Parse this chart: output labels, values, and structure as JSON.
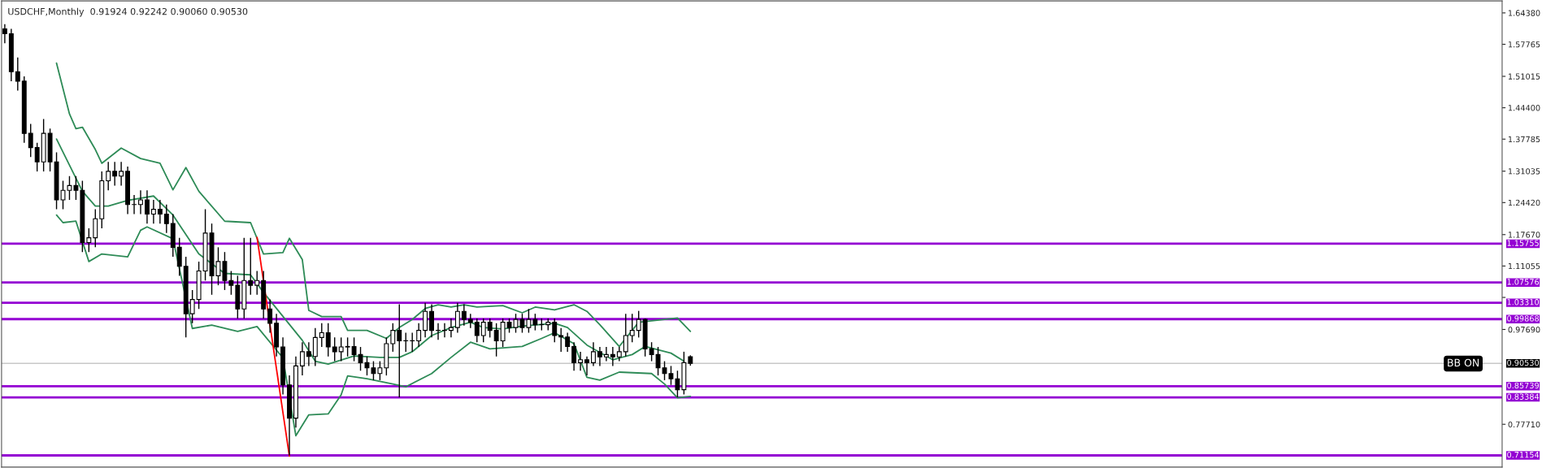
{
  "chart_data": {
    "type": "candlestick",
    "title": "USDCHF,Monthly  0.91924 0.92242 0.90060 0.90530",
    "categories": [
      null,
      null,
      null,
      null,
      null,
      null,
      null,
      null,
      null,
      null,
      null,
      null,
      null,
      null,
      null,
      null,
      null,
      null,
      null,
      null,
      null,
      null,
      null,
      null,
      null,
      null,
      null,
      null,
      null,
      null,
      null,
      null,
      null,
      null,
      null,
      null,
      null,
      null,
      null,
      null,
      null,
      null,
      null,
      null,
      null,
      null,
      null,
      null,
      null,
      null,
      null,
      null,
      null,
      null,
      null,
      null,
      null,
      null,
      null,
      null,
      null,
      null,
      null,
      null,
      null,
      null,
      null,
      null,
      null,
      null,
      null,
      null,
      null,
      null,
      null,
      null,
      null,
      null,
      null,
      null,
      null,
      null,
      null,
      null,
      null,
      null,
      null,
      null,
      null,
      null,
      null,
      null,
      null,
      null,
      null,
      null,
      null,
      null,
      null,
      null,
      null,
      null,
      null,
      null,
      null,
      null,
      null,
      null,
      null,
      null,
      null,
      null,
      null,
      null,
      null,
      null,
      null,
      null,
      null,
      null,
      null,
      null,
      null,
      null,
      null,
      null,
      null,
      null,
      null,
      null,
      null,
      null,
      null,
      null,
      null,
      null,
      null,
      null,
      null,
      null,
      null,
      null,
      null,
      null,
      null,
      null,
      null,
      null,
      null,
      null,
      null,
      null,
      null,
      null,
      null,
      null,
      null,
      null,
      null,
      null,
      null,
      null,
      null,
      null,
      null,
      null,
      null,
      null,
      null,
      null,
      null,
      null,
      null,
      null,
      null,
      null,
      null,
      null,
      null,
      null,
      null,
      null,
      null,
      null,
      null,
      null,
      null,
      null,
      null,
      null,
      null,
      null,
      null,
      null,
      null,
      null,
      null,
      null,
      null,
      null,
      null,
      null,
      null,
      null,
      null,
      null,
      null,
      null,
      null,
      null,
      null,
      null,
      null,
      null,
      null,
      null,
      null,
      null,
      null,
      null,
      null,
      null,
      null,
      null,
      null,
      null,
      null,
      null,
      null,
      null,
      null,
      null
    ],
    "ohlc": [
      [
        1.61,
        1.62,
        1.58,
        1.6
      ],
      [
        1.6,
        1.61,
        1.5,
        1.52
      ],
      [
        1.52,
        1.55,
        1.48,
        1.5
      ],
      [
        1.5,
        1.51,
        1.37,
        1.39
      ],
      [
        1.39,
        1.41,
        1.34,
        1.36
      ],
      [
        1.36,
        1.37,
        1.31,
        1.33
      ],
      [
        1.33,
        1.42,
        1.31,
        1.39
      ],
      [
        1.39,
        1.4,
        1.31,
        1.33
      ],
      [
        1.33,
        1.35,
        1.23,
        1.25
      ],
      [
        1.25,
        1.29,
        1.23,
        1.27
      ],
      [
        1.27,
        1.3,
        1.25,
        1.28
      ],
      [
        1.28,
        1.3,
        1.25,
        1.27
      ],
      [
        1.27,
        1.29,
        1.14,
        1.16
      ],
      [
        1.16,
        1.19,
        1.14,
        1.17
      ],
      [
        1.17,
        1.23,
        1.15,
        1.21
      ],
      [
        1.21,
        1.31,
        1.19,
        1.29
      ],
      [
        1.29,
        1.33,
        1.27,
        1.31
      ],
      [
        1.31,
        1.33,
        1.28,
        1.3
      ],
      [
        1.3,
        1.33,
        1.28,
        1.31
      ],
      [
        1.31,
        1.32,
        1.22,
        1.24
      ],
      [
        1.24,
        1.26,
        1.22,
        1.24
      ],
      [
        1.24,
        1.27,
        1.22,
        1.25
      ],
      [
        1.25,
        1.27,
        1.2,
        1.22
      ],
      [
        1.22,
        1.25,
        1.2,
        1.23
      ],
      [
        1.23,
        1.25,
        1.2,
        1.22
      ],
      [
        1.22,
        1.24,
        1.18,
        1.2
      ],
      [
        1.2,
        1.22,
        1.13,
        1.15
      ],
      [
        1.15,
        1.17,
        1.09,
        1.11
      ],
      [
        1.11,
        1.13,
        0.96,
        1.01
      ],
      [
        1.01,
        1.06,
        0.99,
        1.04
      ],
      [
        1.04,
        1.12,
        1.02,
        1.1
      ],
      [
        1.1,
        1.23,
        1.08,
        1.18
      ],
      [
        1.18,
        1.2,
        1.05,
        1.09
      ],
      [
        1.09,
        1.15,
        1.07,
        1.12
      ],
      [
        1.12,
        1.14,
        1.06,
        1.08
      ],
      [
        1.08,
        1.1,
        1.05,
        1.07
      ],
      [
        1.07,
        1.09,
        1.0,
        1.02
      ],
      [
        1.02,
        1.17,
        1.0,
        1.08
      ],
      [
        1.08,
        1.17,
        1.05,
        1.07
      ],
      [
        1.07,
        1.1,
        1.05,
        1.08
      ],
      [
        1.08,
        1.1,
        1.0,
        1.02
      ],
      [
        1.02,
        1.04,
        0.97,
        0.99
      ],
      [
        0.99,
        1.01,
        0.92,
        0.94
      ],
      [
        0.94,
        0.96,
        0.84,
        0.86
      ],
      [
        0.86,
        0.88,
        0.7115,
        0.79
      ],
      [
        0.79,
        0.92,
        0.77,
        0.9
      ],
      [
        0.9,
        0.95,
        0.88,
        0.93
      ],
      [
        0.93,
        0.95,
        0.9,
        0.92
      ],
      [
        0.92,
        0.98,
        0.9,
        0.96
      ],
      [
        0.96,
        0.99,
        0.94,
        0.97
      ],
      [
        0.97,
        0.99,
        0.92,
        0.94
      ],
      [
        0.94,
        0.96,
        0.91,
        0.93
      ],
      [
        0.93,
        0.96,
        0.91,
        0.94
      ],
      [
        0.94,
        0.96,
        0.92,
        0.941
      ],
      [
        0.941,
        0.96,
        0.91,
        0.924
      ],
      [
        0.924,
        0.94,
        0.89,
        0.907
      ],
      [
        0.907,
        0.92,
        0.88,
        0.896
      ],
      [
        0.896,
        0.91,
        0.87,
        0.884
      ],
      [
        0.884,
        0.91,
        0.87,
        0.896
      ],
      [
        0.896,
        0.96,
        0.88,
        0.947
      ],
      [
        0.947,
        0.99,
        0.93,
        0.975
      ],
      [
        0.975,
        1.03,
        0.834,
        0.953
      ],
      [
        0.953,
        0.97,
        0.93,
        0.953
      ],
      [
        0.953,
        0.97,
        0.93,
        0.953
      ],
      [
        0.953,
        0.99,
        0.94,
        0.975
      ],
      [
        0.975,
        1.033,
        0.96,
        1.015
      ],
      [
        1.015,
        1.03,
        0.96,
        0.975
      ],
      [
        0.975,
        0.99,
        0.955,
        0.975
      ],
      [
        0.975,
        0.99,
        0.96,
        0.975
      ],
      [
        0.975,
        1.0,
        0.96,
        0.981
      ],
      [
        0.981,
        1.033,
        0.97,
        1.015
      ],
      [
        1.015,
        1.03,
        0.985,
        0.998
      ],
      [
        0.998,
        1.01,
        0.98,
        0.992
      ],
      [
        0.992,
        1.0,
        0.95,
        0.964
      ],
      [
        0.964,
        1.0,
        0.95,
        0.992
      ],
      [
        0.992,
        1.0,
        0.96,
        0.975
      ],
      [
        0.975,
        0.99,
        0.92,
        0.953
      ],
      [
        0.953,
        1.0,
        0.94,
        0.992
      ],
      [
        0.992,
        1.0,
        0.97,
        0.981
      ],
      [
        0.981,
        1.01,
        0.97,
        0.998
      ],
      [
        0.998,
        1.01,
        0.97,
        0.981
      ],
      [
        0.981,
        1.02,
        0.97,
        0.998
      ],
      [
        0.998,
        1.01,
        0.975,
        0.987
      ],
      [
        0.987,
        1.0,
        0.975,
        0.987
      ],
      [
        0.987,
        1.0,
        0.975,
        0.992
      ],
      [
        0.992,
        1.0,
        0.95,
        0.964
      ],
      [
        0.964,
        0.98,
        0.93,
        0.961
      ],
      [
        0.961,
        0.97,
        0.93,
        0.941
      ],
      [
        0.941,
        0.95,
        0.89,
        0.907
      ],
      [
        0.907,
        0.93,
        0.89,
        0.913
      ],
      [
        0.913,
        0.92,
        0.88,
        0.907
      ],
      [
        0.907,
        0.95,
        0.9,
        0.93
      ],
      [
        0.93,
        0.94,
        0.9,
        0.919
      ],
      [
        0.919,
        0.94,
        0.91,
        0.924
      ],
      [
        0.924,
        0.94,
        0.9,
        0.919
      ],
      [
        0.919,
        0.94,
        0.91,
        0.93
      ],
      [
        0.93,
        1.01,
        0.92,
        0.964
      ],
      [
        0.964,
        1.01,
        0.95,
        0.975
      ],
      [
        0.975,
        1.016,
        0.96,
        0.998
      ],
      [
        0.998,
        1.0,
        0.92,
        0.936
      ],
      [
        0.936,
        0.95,
        0.91,
        0.924
      ],
      [
        0.924,
        0.94,
        0.88,
        0.896
      ],
      [
        0.896,
        0.91,
        0.87,
        0.884
      ],
      [
        0.884,
        0.9,
        0.86,
        0.873
      ],
      [
        0.873,
        0.89,
        0.834,
        0.85
      ],
      [
        0.85,
        0.93,
        0.84,
        0.907
      ],
      [
        0.91924,
        0.92242,
        0.9006,
        0.9053
      ],
      null,
      null,
      null,
      null,
      null,
      null,
      null,
      null,
      null,
      null,
      null,
      null,
      null,
      null,
      null,
      null,
      null,
      null,
      null,
      null,
      null,
      null,
      null,
      null,
      null,
      null,
      null,
      null,
      null,
      null,
      null,
      null,
      null,
      null,
      null,
      null,
      null,
      null,
      null,
      null,
      null,
      null,
      null,
      null,
      null,
      null,
      null,
      null,
      null,
      null,
      null,
      null,
      null,
      null,
      null,
      null,
      null,
      null,
      null,
      null,
      null,
      null,
      null,
      null,
      null,
      null,
      null,
      null,
      null,
      null,
      null,
      null,
      null,
      null,
      null,
      null,
      null,
      null,
      null,
      null,
      null,
      null,
      null,
      null,
      null,
      null,
      null,
      null,
      null,
      null,
      null,
      null,
      null,
      null,
      null,
      null,
      null,
      null,
      null,
      null,
      null,
      null,
      null,
      null,
      null,
      null,
      null,
      null,
      null,
      null,
      null,
      null,
      null,
      null,
      null,
      null,
      null,
      null,
      null,
      null,
      null,
      null,
      null,
      null,
      null
    ],
    "series": [
      {
        "type": "line",
        "color": "#2e8b57",
        "values": [
          null,
          null,
          null,
          null,
          null,
          null,
          null,
          null,
          1.538,
          null,
          1.431,
          1.4,
          1.403,
          null,
          1.356,
          1.327,
          null,
          null,
          1.359,
          null,
          null,
          1.337,
          null,
          null,
          1.327,
          null,
          1.271,
          null,
          1.318,
          null,
          1.268,
          null,
          null,
          null,
          1.205,
          null,
          null,
          null,
          1.202,
          null,
          1.136,
          null,
          null,
          1.139,
          1.169,
          null,
          1.124,
          1.017,
          null,
          1.004,
          null,
          null,
          1.004,
          0.975,
          null,
          null,
          0.975,
          null,
          null,
          0.958,
          null,
          0.981,
          null,
          0.998,
          null,
          1.021,
          null,
          1.029,
          null,
          1.024,
          null,
          1.029,
          null,
          1.024,
          null,
          null,
          null,
          1.027,
          null,
          null,
          1.012,
          null,
          1.024,
          null,
          null,
          1.018,
          null,
          null,
          1.029,
          null,
          1.015,
          null,
          0.987,
          null,
          null,
          0.941,
          0.958,
          null,
          0.992,
          null,
          null,
          null,
          null,
          null,
          1.001,
          null,
          0.973,
          null,
          null,
          null,
          null,
          null,
          null,
          null,
          null,
          null,
          null,
          null,
          null,
          null,
          null,
          null,
          null,
          null,
          null,
          null,
          null,
          null,
          null,
          null,
          null,
          null,
          null,
          null,
          null,
          null,
          null,
          null,
          null,
          null,
          null,
          null,
          null,
          null,
          null,
          null,
          null,
          null,
          null,
          null,
          null,
          null,
          null,
          null,
          null,
          null,
          null,
          null,
          null,
          null,
          null,
          null,
          null,
          null,
          null,
          null,
          null,
          null,
          null,
          null,
          null,
          null,
          null,
          null,
          null,
          null,
          null,
          null,
          null,
          null,
          null,
          null,
          null,
          null,
          null,
          null,
          null,
          null,
          null,
          null,
          null,
          null,
          null,
          null,
          null,
          null,
          null,
          null,
          null,
          null,
          null,
          null,
          null,
          null,
          null,
          null,
          null,
          null,
          null,
          null,
          null,
          null,
          null,
          null,
          null,
          null,
          null,
          null,
          null,
          null,
          null,
          null,
          null,
          null,
          null,
          null,
          null,
          null,
          null,
          null,
          null,
          null
        ]
      },
      {
        "type": "line",
        "color": "#2e8b57",
        "values": [
          null,
          null,
          null,
          null,
          null,
          null,
          null,
          null,
          1.378,
          null,
          null,
          null,
          1.268,
          null,
          1.237,
          null,
          1.237,
          null,
          null,
          1.249,
          null,
          null,
          null,
          1.258,
          null,
          null,
          1.218,
          null,
          null,
          null,
          1.136,
          null,
          null,
          null,
          1.095,
          null,
          null,
          null,
          1.092,
          null,
          1.055,
          null,
          null,
          null,
          null,
          null,
          0.954,
          null,
          0.91,
          null,
          0.904,
          null,
          null,
          null,
          0.921,
          null,
          null,
          null,
          0.918,
          null,
          null,
          0.918,
          null,
          0.93,
          null,
          null,
          0.964,
          null,
          null,
          0.981,
          null,
          null,
          0.992,
          null,
          0.981,
          null,
          null,
          0.978,
          null,
          null,
          0.984,
          null,
          null,
          null,
          null,
          0.99,
          null,
          0.981,
          null,
          null,
          0.944,
          null,
          null,
          null,
          0.913,
          null,
          null,
          0.924,
          null,
          0.941,
          null,
          null,
          null,
          0.927,
          null,
          0.91,
          null,
          null,
          null,
          null,
          null,
          null,
          null,
          null,
          null,
          null,
          null,
          null,
          null,
          null,
          null,
          null,
          null,
          null,
          null,
          null,
          null,
          null,
          null,
          null,
          null,
          null,
          null,
          null,
          null,
          null,
          null,
          null,
          null,
          null,
          null,
          null,
          null,
          null,
          null,
          null,
          null,
          null,
          null,
          null,
          null,
          null,
          null,
          null,
          null,
          null,
          null,
          null,
          null,
          null,
          null,
          null,
          null,
          null,
          null,
          null,
          null,
          null,
          null,
          null,
          null,
          null,
          null,
          null,
          null,
          null,
          null,
          null,
          null,
          null,
          null,
          null,
          null,
          null,
          null,
          null,
          null,
          null,
          null,
          null,
          null,
          null,
          null,
          null,
          null,
          null,
          null,
          null,
          null,
          null,
          null,
          null,
          null,
          null,
          null,
          null,
          null,
          null,
          null,
          null,
          null,
          null,
          null,
          null,
          null,
          null,
          null,
          null,
          null,
          null,
          null,
          null,
          null,
          null,
          null,
          null,
          null,
          null,
          null,
          null,
          null,
          null
        ]
      },
      {
        "type": "line",
        "color": "#2e8b57",
        "values": [
          null,
          null,
          null,
          null,
          null,
          null,
          null,
          null,
          1.218,
          1.202,
          null,
          1.205,
          null,
          1.12,
          null,
          1.136,
          null,
          null,
          null,
          1.13,
          null,
          1.186,
          1.193,
          null,
          null,
          null,
          1.168,
          null,
          null,
          0.979,
          null,
          null,
          0.986,
          null,
          null,
          null,
          0.973,
          null,
          null,
          0.983,
          null,
          null,
          null,
          0.917,
          null,
          0.753,
          null,
          0.797,
          null,
          null,
          0.799,
          null,
          0.839,
          0.879,
          null,
          null,
          0.873,
          null,
          null,
          null,
          0.862,
          null,
          0.856,
          null,
          null,
          null,
          0.884,
          null,
          null,
          0.918,
          null,
          null,
          0.95,
          null,
          null,
          0.936,
          null,
          null,
          null,
          null,
          0.941,
          null,
          null,
          0.958,
          null,
          0.97,
          null,
          null,
          0.947,
          null,
          0.876,
          null,
          0.87,
          null,
          null,
          0.887,
          null,
          null,
          null,
          null,
          0.884,
          null,
          0.862,
          null,
          0.833,
          null,
          0.836,
          null,
          null,
          null,
          null,
          null,
          null,
          null,
          null,
          null,
          null,
          null,
          null,
          null,
          null,
          null,
          null,
          null,
          null,
          null,
          null,
          null,
          null,
          null,
          null,
          null,
          null,
          null,
          null,
          null,
          null,
          null,
          null,
          null,
          null,
          null,
          null,
          null,
          null,
          null,
          null,
          null,
          null,
          null,
          null,
          null,
          null,
          null,
          null,
          null,
          null,
          null,
          null,
          null,
          null,
          null,
          null,
          null,
          null,
          null,
          null,
          null,
          null,
          null,
          null,
          null,
          null,
          null,
          null,
          null,
          null,
          null,
          null,
          null,
          null,
          null,
          null,
          null,
          null,
          null,
          null,
          null,
          null,
          null,
          null,
          null,
          null,
          null,
          null,
          null,
          null,
          null,
          null,
          null,
          null,
          null,
          null,
          null,
          null,
          null,
          null,
          null,
          null,
          null,
          null,
          null,
          null,
          null,
          null,
          null,
          null,
          null,
          null,
          null,
          null,
          null,
          null,
          null,
          null,
          null,
          null,
          null,
          null,
          null,
          null,
          null
        ]
      },
      {
        "type": "line",
        "color": "#ff0000",
        "values": [
          null,
          null,
          null,
          null,
          null,
          null,
          null,
          null,
          null,
          null,
          null,
          null,
          null,
          null,
          null,
          null,
          null,
          null,
          null,
          null,
          null,
          null,
          null,
          null,
          null,
          null,
          null,
          null,
          null,
          null,
          null,
          null,
          null,
          null,
          null,
          null,
          null,
          null,
          null,
          1.171,
          null,
          null,
          null,
          null,
          0.71,
          null,
          null,
          null,
          null,
          null,
          null,
          null,
          null,
          null,
          null,
          null,
          null,
          null,
          null,
          null,
          null,
          null,
          null,
          null,
          null,
          null,
          null,
          null,
          null,
          null,
          null,
          null,
          null,
          null,
          null,
          null,
          null,
          null,
          null,
          null,
          null,
          null,
          null,
          null,
          null,
          null,
          null,
          null,
          null,
          null,
          null,
          null,
          null,
          null,
          null,
          null,
          null,
          null,
          null,
          null,
          null,
          null,
          null,
          null,
          null,
          null,
          null,
          null,
          null,
          null,
          null,
          null,
          null,
          null,
          null,
          null,
          null,
          null,
          null,
          null,
          null,
          null,
          null,
          null,
          null,
          null,
          null,
          null,
          null,
          null,
          null,
          null,
          null,
          null,
          null,
          null,
          null,
          null,
          null,
          null,
          null,
          null,
          null,
          null,
          null,
          null,
          null,
          null,
          null,
          null,
          null,
          null,
          null,
          null,
          null,
          null,
          null,
          null,
          null,
          null,
          null,
          null,
          null,
          null,
          null,
          null,
          null,
          null,
          null,
          null,
          null,
          null,
          null,
          null,
          null,
          null,
          null,
          null,
          null,
          null,
          null,
          null,
          null,
          null,
          null,
          null,
          null,
          null,
          null,
          null,
          null,
          null,
          null,
          null,
          null,
          null,
          null,
          null,
          null,
          null,
          null,
          null,
          null,
          null,
          null,
          null,
          null,
          null,
          null,
          null,
          null,
          null,
          null,
          null,
          null,
          null,
          null,
          null,
          null,
          null,
          null,
          null,
          null,
          null,
          null,
          null,
          null,
          null,
          null,
          null,
          null,
          null
        ]
      }
    ],
    "ref_lines": [
      {
        "axis": "y",
        "value": 1.15755,
        "label": "1.15755",
        "color": "#9400d3"
      },
      {
        "axis": "y",
        "value": 1.07576,
        "label": "1.07576",
        "color": "#9400d3"
      },
      {
        "axis": "y",
        "value": 1.0331,
        "label": "1.03310",
        "color": "#9400d3"
      },
      {
        "axis": "y",
        "value": 0.99868,
        "label": "0.99868",
        "color": "#9400d3"
      },
      {
        "axis": "y",
        "value": 0.85739,
        "label": "0.85739",
        "color": "#9400d3"
      },
      {
        "axis": "y",
        "value": 0.83384,
        "label": "0.83384",
        "color": "#9400d3"
      },
      {
        "axis": "y",
        "value": 0.71154,
        "label": "0.71154",
        "color": "#9400d3"
      },
      {
        "axis": "y",
        "value": 0.9053,
        "label": "0.90530",
        "color": "#c8c8c8"
      }
    ],
    "annotations": [
      "BB ON"
    ],
    "ylim": [
      0.687,
      1.669
    ],
    "yticks": [
      {
        "value": 1.6438,
        "label": "1.64380"
      },
      {
        "value": 1.57765,
        "label": "1.57765"
      },
      {
        "value": 1.51015,
        "label": "1.51015"
      },
      {
        "value": 1.444,
        "label": "1.44400"
      },
      {
        "value": 1.37785,
        "label": "1.37785"
      },
      {
        "value": 1.31035,
        "label": "1.31035"
      },
      {
        "value": 1.2442,
        "label": "1.24420"
      },
      {
        "value": 1.1767,
        "label": "1.17670"
      },
      {
        "value": 1.11055,
        "label": "1.11055"
      },
      {
        "value": 1.0444,
        "label": null
      },
      {
        "value": 0.9769,
        "label": "0.97690"
      },
      {
        "value": 0.7771,
        "label": "0.77710"
      }
    ],
    "tick_labels": "y",
    "grid": false,
    "legend": false
  }
}
